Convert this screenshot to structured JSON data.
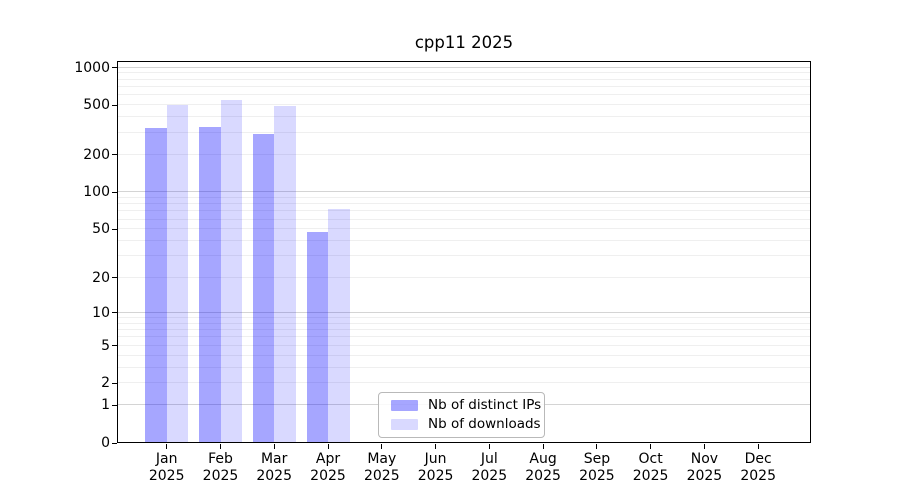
{
  "chart_data": {
    "type": "bar",
    "title": "cpp11 2025",
    "categories": [
      "Jan",
      "Feb",
      "Mar",
      "Apr",
      "May",
      "Jun",
      "Jul",
      "Aug",
      "Sep",
      "Oct",
      "Nov",
      "Dec"
    ],
    "x_year": "2025",
    "series": [
      {
        "name": "Nb of distinct IPs",
        "color": "rgba(0,0,255,0.35)",
        "values": [
          320,
          330,
          290,
          47,
          null,
          null,
          null,
          null,
          null,
          null,
          null,
          null
        ]
      },
      {
        "name": "Nb of downloads",
        "color": "rgba(0,0,255,0.15)",
        "values": [
          490,
          540,
          480,
          72,
          null,
          null,
          null,
          null,
          null,
          null,
          null,
          null
        ]
      }
    ],
    "yscale": "log1p",
    "ylim": [
      0,
      1130
    ],
    "ytick_values": [
      1000,
      500,
      200,
      100,
      50,
      20,
      10,
      5,
      2,
      1,
      0
    ],
    "ytick_labels": [
      "1000",
      "500",
      "200",
      "100",
      "50",
      "20",
      "10",
      "5",
      "2",
      "1",
      "0"
    ],
    "grid": "horizontal, major and minor",
    "legend_position": "inside lower center"
  },
  "colors": {
    "background": "#ffffff",
    "grid_minor": "#efefef",
    "grid_major": "#d4d4d4",
    "axis": "#000000",
    "legend_border": "#b9b9b9"
  }
}
